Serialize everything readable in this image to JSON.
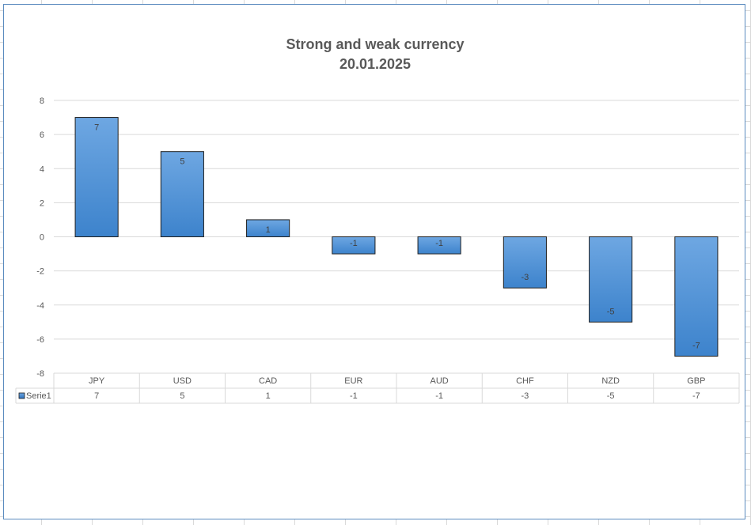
{
  "chart_data": {
    "type": "bar",
    "title": [
      "Strong and weak currency",
      "20.01.2025"
    ],
    "categories": [
      "JPY",
      "USD",
      "CAD",
      "EUR",
      "AUD",
      "CHF",
      "NZD",
      "GBP"
    ],
    "series": [
      {
        "name": "Serie1",
        "values": [
          7,
          5,
          1,
          -1,
          -1,
          -3,
          -5,
          -7
        ]
      }
    ],
    "ylim": [
      -8,
      8
    ],
    "yticks": [
      8,
      6,
      4,
      2,
      0,
      -2,
      -4,
      -6,
      -8
    ],
    "grid": true,
    "data_table": true,
    "bar_color": "#4f8fd6",
    "bar_border": "#1f1f1f"
  }
}
